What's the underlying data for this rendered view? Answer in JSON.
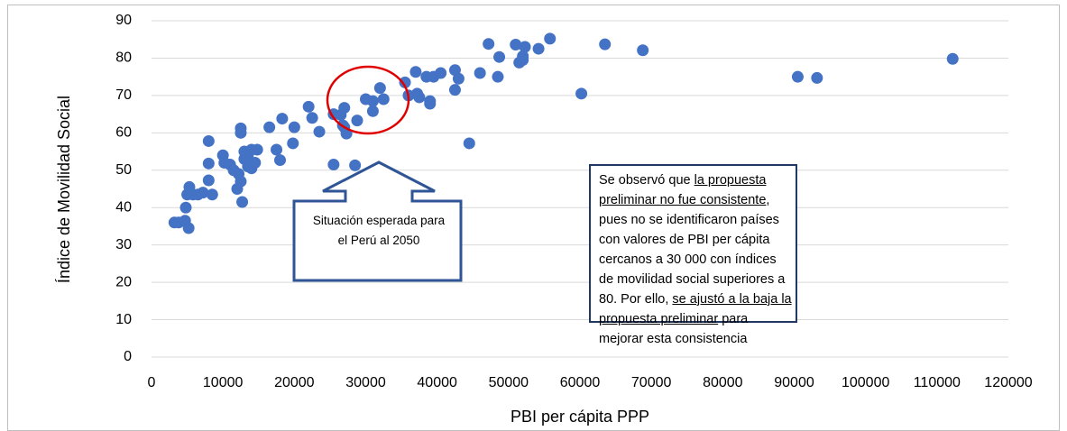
{
  "chart_data": {
    "type": "scatter",
    "x_label": "PBI per cápita PPP",
    "y_label": "Índice de Movilidad Social",
    "color": "#4472c4",
    "grid": true,
    "xlim": [
      0,
      120000
    ],
    "xticks": [
      0,
      10000,
      20000,
      30000,
      40000,
      50000,
      60000,
      70000,
      80000,
      90000,
      100000,
      110000,
      120000
    ],
    "ylim": [
      0,
      90
    ],
    "yticks": [
      0,
      10,
      20,
      30,
      40,
      50,
      60,
      70,
      80,
      90
    ],
    "x": [
      3200,
      3800,
      4700,
      4800,
      5000,
      5200,
      5300,
      5800,
      6500,
      7200,
      8000,
      8000,
      8000,
      8500,
      10000,
      10200,
      11000,
      11500,
      12000,
      12200,
      12500,
      12500,
      12500,
      12700,
      13000,
      13000,
      13500,
      13500,
      14000,
      14000,
      14000,
      14500,
      14800,
      16500,
      17500,
      18000,
      18300,
      19800,
      20000,
      22000,
      22500,
      23500,
      25500,
      25500,
      26500,
      26800,
      27000,
      27300,
      27000,
      28500,
      28800,
      30000,
      31000,
      31000,
      32000,
      32500,
      35500,
      36000,
      37000,
      37200,
      37500,
      38500,
      39000,
      39000,
      39500,
      40500,
      42500,
      42500,
      43000,
      44500,
      46000,
      47200,
      48500,
      48700,
      51000,
      51500,
      52000,
      52000,
      52300,
      54200,
      55800,
      60200,
      63500,
      68800,
      90500,
      93200,
      112200
    ],
    "values": [
      36,
      36,
      36.5,
      40,
      43.5,
      34.5,
      45.5,
      43.5,
      43.5,
      44,
      57.8,
      51.8,
      47.3,
      43.5,
      54,
      52,
      51.5,
      50,
      45,
      49,
      60,
      61.2,
      47,
      41.5,
      53,
      55,
      54,
      51,
      55.5,
      52,
      50.5,
      52,
      55.5,
      61.5,
      55.5,
      52.7,
      63.8,
      57.2,
      61.5,
      67,
      64,
      60.3,
      65,
      51.5,
      64.8,
      62,
      66.7,
      59.8,
      61.5,
      51.3,
      63.3,
      69,
      68.5,
      65.8,
      72,
      69,
      73.5,
      70,
      76.3,
      70.5,
      69.5,
      75,
      67.8,
      68.5,
      75,
      76,
      76.8,
      71.5,
      74.5,
      57.2,
      76,
      83.8,
      75,
      80.3,
      83.6,
      78.8,
      80.5,
      79.5,
      83,
      82.5,
      85.2,
      70.5,
      83.7,
      82.1,
      75,
      74.7,
      79.8
    ],
    "callout": "Situación esperada para el Perú al 2050",
    "annotation": [
      "Se observó que ",
      "la propuesta preliminar no fue consistente",
      ", pues no se identificaron países con valores de PBI per cápita cercanos a 30 000 con índices de movilidad social superiores a 80. Por ello, ",
      "se ajustó a la baja la propuesta preliminar",
      " para mejorar esta consistencia"
    ]
  }
}
